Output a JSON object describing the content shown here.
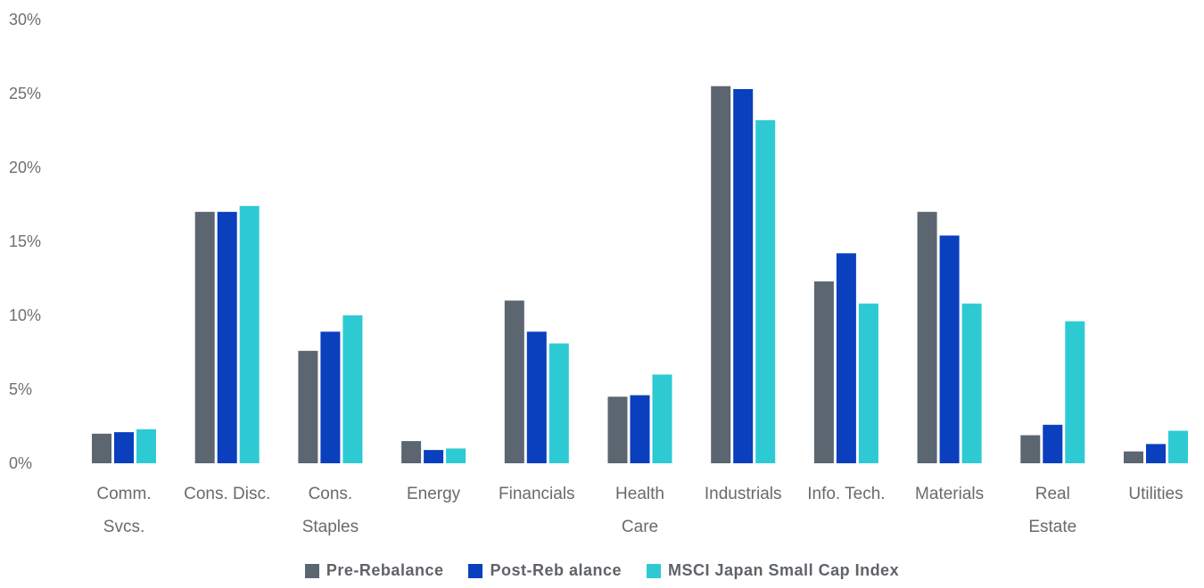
{
  "chart_data": {
    "type": "bar",
    "categories": [
      [
        "Comm.",
        "Svcs."
      ],
      [
        "Cons. Disc."
      ],
      [
        "Cons.",
        "Staples"
      ],
      [
        "Energy"
      ],
      [
        "Financials"
      ],
      [
        "Health",
        "Care"
      ],
      [
        "Industrials"
      ],
      [
        "Info. Tech."
      ],
      [
        "Materials"
      ],
      [
        "Real",
        "Estate"
      ],
      [
        "Utilities"
      ]
    ],
    "series": [
      {
        "name": "Pre-Rebalance",
        "color": "#5c6670",
        "values": [
          2.0,
          17.0,
          7.6,
          1.5,
          11.0,
          4.5,
          25.5,
          12.3,
          17.0,
          1.9,
          0.8
        ]
      },
      {
        "name": "Post-Reb alance",
        "color": "#0a3fbd",
        "values": [
          2.1,
          17.0,
          8.9,
          0.9,
          8.9,
          4.6,
          25.3,
          14.2,
          15.4,
          2.6,
          1.3
        ]
      },
      {
        "name": "MSCI Japan Small Cap Index",
        "color": "#2ecad3",
        "values": [
          2.3,
          17.4,
          10.0,
          1.0,
          8.1,
          6.0,
          23.2,
          10.8,
          10.8,
          9.6,
          2.2
        ]
      }
    ],
    "y_ticks": [
      "0%",
      "5%",
      "10%",
      "15%",
      "20%",
      "25%",
      "30%"
    ],
    "ylim": [
      0,
      30
    ],
    "grid": false,
    "legend_position": "bottom"
  }
}
